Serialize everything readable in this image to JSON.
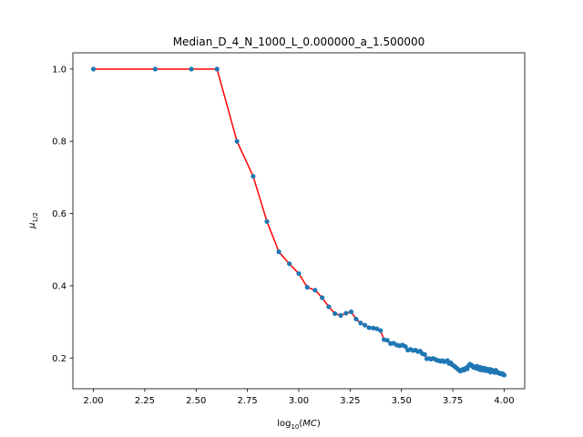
{
  "chart_data": {
    "type": "line",
    "title": "Median_D_4_N_1000_L_0.000000_a_1.500000",
    "xlabel_parts": {
      "prefix": "log",
      "sub": "10",
      "open": "(",
      "var": "MC",
      "close": ")"
    },
    "ylabel_parts": {
      "mu": "μ",
      "sub": "1/2"
    },
    "xlim": [
      1.9,
      4.1
    ],
    "ylim": [
      0.115,
      1.045
    ],
    "xticks": [
      2.0,
      2.25,
      2.5,
      2.75,
      3.0,
      3.25,
      3.5,
      3.75,
      4.0
    ],
    "xtick_labels": [
      "2.00",
      "2.25",
      "2.50",
      "2.75",
      "3.00",
      "3.25",
      "3.50",
      "3.75",
      "4.00"
    ],
    "yticks": [
      0.2,
      0.4,
      0.6,
      0.8,
      1.0
    ],
    "ytick_labels": [
      "0.2",
      "0.4",
      "0.6",
      "0.8",
      "1.0"
    ],
    "grid": false,
    "line_color": "#ff0000",
    "marker_color": "#1f77b4",
    "series": [
      {
        "x": [
          2.0,
          2.301,
          2.477,
          2.602,
          2.699,
          2.778,
          2.845,
          2.903,
          2.954,
          3.0,
          3.041,
          3.079,
          3.114,
          3.146,
          3.176,
          3.204,
          3.23,
          3.255,
          3.279,
          3.301,
          3.322,
          3.342,
          3.362,
          3.38,
          3.398,
          3.415,
          3.431,
          3.447,
          3.462,
          3.477,
          3.491,
          3.505,
          3.519,
          3.531,
          3.544,
          3.556,
          3.568,
          3.58,
          3.591,
          3.602,
          3.613,
          3.623,
          3.633,
          3.643,
          3.653,
          3.663,
          3.672,
          3.681,
          3.69,
          3.699,
          3.708,
          3.716,
          3.724,
          3.732,
          3.74,
          3.748,
          3.756,
          3.763,
          3.771,
          3.778,
          3.785,
          3.792,
          3.799,
          3.806,
          3.813,
          3.82,
          3.826,
          3.833,
          3.839,
          3.845,
          3.851,
          3.857,
          3.863,
          3.869,
          3.875,
          3.881,
          3.886,
          3.892,
          3.898,
          3.903,
          3.908,
          3.914,
          3.919,
          3.924,
          3.929,
          3.934,
          3.94,
          3.944,
          3.949,
          3.954,
          3.959,
          3.964,
          3.968,
          3.973,
          3.978,
          3.982,
          3.987,
          3.991,
          3.996,
          4.0
        ],
        "y": [
          1.0,
          1.0,
          1.0,
          1.0,
          0.8,
          0.703,
          0.578,
          0.494,
          0.461,
          0.434,
          0.396,
          0.388,
          0.367,
          0.342,
          0.323,
          0.318,
          0.324,
          0.328,
          0.308,
          0.297,
          0.291,
          0.284,
          0.283,
          0.281,
          0.276,
          0.251,
          0.249,
          0.24,
          0.241,
          0.236,
          0.234,
          0.236,
          0.232,
          0.222,
          0.224,
          0.221,
          0.222,
          0.218,
          0.219,
          0.212,
          0.21,
          0.198,
          0.199,
          0.197,
          0.199,
          0.197,
          0.194,
          0.193,
          0.191,
          0.193,
          0.19,
          0.191,
          0.193,
          0.185,
          0.187,
          0.181,
          0.178,
          0.175,
          0.171,
          0.168,
          0.164,
          0.165,
          0.169,
          0.167,
          0.172,
          0.17,
          0.178,
          0.183,
          0.181,
          0.178,
          0.174,
          0.176,
          0.172,
          0.177,
          0.17,
          0.168,
          0.174,
          0.167,
          0.169,
          0.172,
          0.165,
          0.17,
          0.166,
          0.164,
          0.169,
          0.161,
          0.167,
          0.163,
          0.164,
          0.16,
          0.166,
          0.162,
          0.16,
          0.159,
          0.157,
          0.158,
          0.156,
          0.157,
          0.155,
          0.153
        ]
      }
    ]
  }
}
